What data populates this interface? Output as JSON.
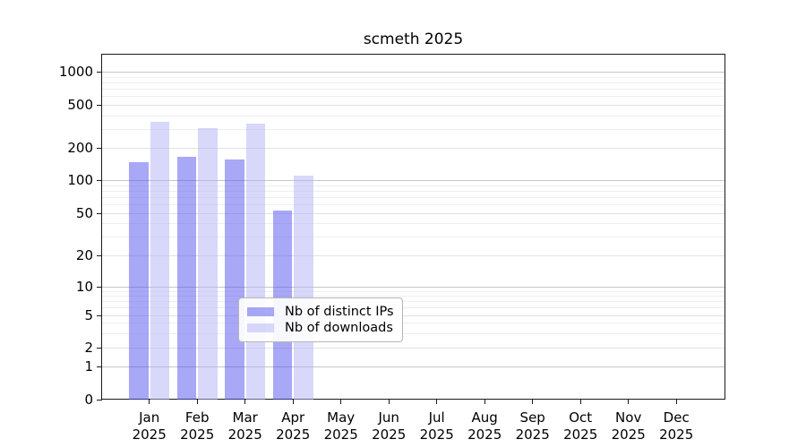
{
  "title": "scmeth 2025",
  "chart_data": {
    "type": "bar",
    "scale": "pseudo-log",
    "title": "scmeth 2025",
    "xlabel": "",
    "ylabel": "",
    "year_label": "2025",
    "categories": [
      "Jan",
      "Feb",
      "Mar",
      "Apr",
      "May",
      "Jun",
      "Jul",
      "Aug",
      "Sep",
      "Oct",
      "Nov",
      "Dec"
    ],
    "yticks": [
      0,
      1,
      2,
      5,
      10,
      20,
      50,
      100,
      200,
      500,
      1000
    ],
    "ylim": [
      0,
      1400
    ],
    "grid": "on",
    "legend_position": "inside-bottom-center",
    "bar_opacity": 0.5,
    "series": [
      {
        "name": "Nb of distinct IPs",
        "color": "#5252ee",
        "values": [
          146,
          166,
          155,
          53,
          null,
          null,
          null,
          null,
          null,
          null,
          null,
          null
        ]
      },
      {
        "name": "Nb of downloads",
        "color": "#b2b2f6",
        "values": [
          345,
          302,
          333,
          111,
          null,
          null,
          null,
          null,
          null,
          null,
          null,
          null
        ]
      }
    ],
    "colors": {
      "grid_major": "#c5c5c5",
      "grid_minor": "#eeeeee",
      "axis": "#1a1a1a"
    }
  }
}
